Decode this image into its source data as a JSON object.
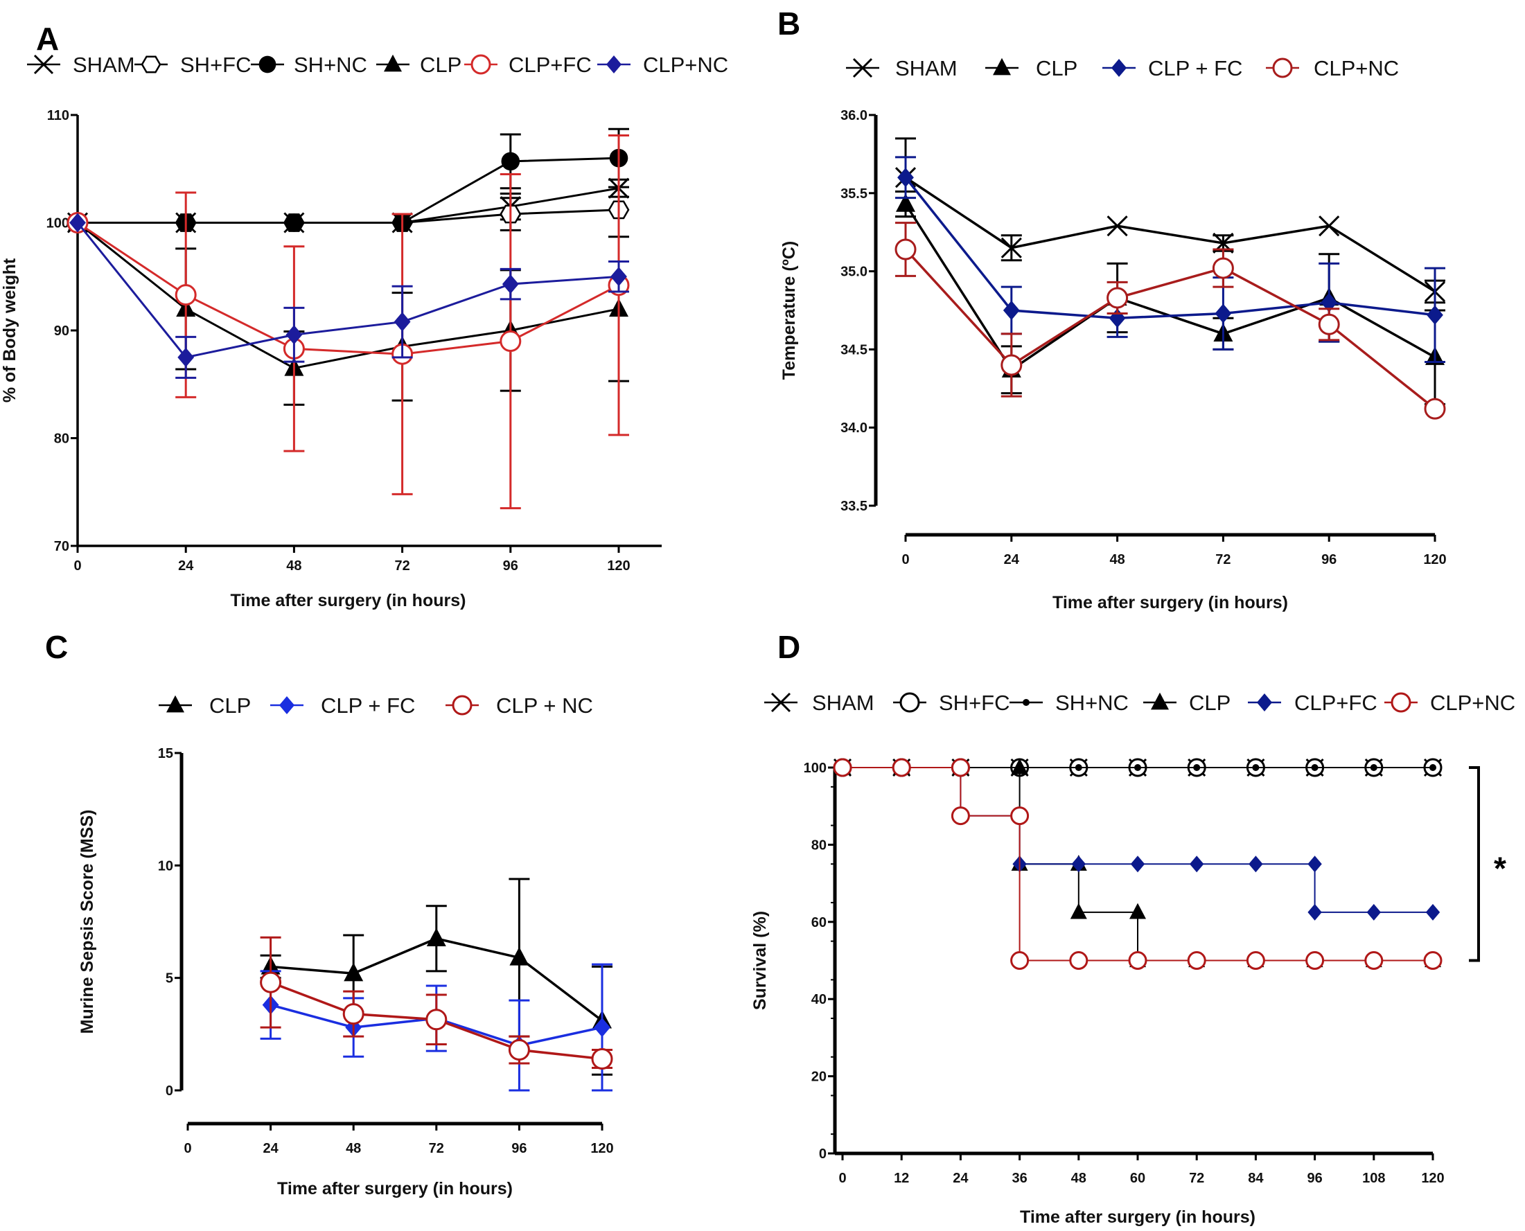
{
  "chart_data": [
    {
      "panel": "A",
      "type": "line",
      "xlabel": "Time after surgery (in hours)",
      "ylabel": "% of Body weight",
      "xlim": [
        0,
        120
      ],
      "ylim": [
        70,
        110
      ],
      "xticks": [
        "0",
        "24",
        "48",
        "72",
        "96",
        "120"
      ],
      "yticks": [
        "70",
        "80",
        "90",
        "100",
        "110"
      ],
      "x": [
        0,
        24,
        48,
        72,
        96,
        120
      ],
      "legend_placement": "top",
      "series": [
        {
          "name": "SHAM",
          "marker": "x",
          "color": "#000000",
          "values": [
            100,
            100,
            100,
            100,
            101.5,
            103.2
          ],
          "err": [
            0,
            0,
            0,
            0,
            1.2,
            0.8
          ]
        },
        {
          "name": "SH+FC",
          "marker": "open-hexagon",
          "color": "#000000",
          "values": [
            100,
            100,
            100,
            100,
            100.8,
            101.2
          ],
          "err": [
            0,
            0,
            0,
            0,
            1.5,
            0
          ]
        },
        {
          "name": "SH+NC",
          "marker": "filled-circle",
          "color": "#000000",
          "values": [
            100,
            100,
            100,
            100,
            105.7,
            106
          ],
          "err": [
            0,
            0,
            0,
            0,
            2.5,
            2.7
          ]
        },
        {
          "name": "CLP",
          "marker": "filled-triangle",
          "color": "#000000",
          "values": [
            100,
            92,
            86.5,
            88.5,
            90,
            92
          ],
          "err": [
            0,
            5.6,
            3.4,
            5,
            5.6,
            6.7
          ]
        },
        {
          "name": "CLP+FC",
          "marker": "open-circle",
          "color": "#d42a2a",
          "values": [
            100,
            93.3,
            88.3,
            87.8,
            89,
            94.2
          ],
          "err": [
            0,
            9.5,
            9.5,
            13,
            15.5,
            13.9
          ]
        },
        {
          "name": "CLP+NC",
          "marker": "filled-diamond",
          "color": "#1c1c9c",
          "values": [
            100,
            87.5,
            89.6,
            90.8,
            94.3,
            95
          ],
          "err": [
            0,
            1.9,
            2.5,
            3.3,
            1.4,
            1.4
          ]
        }
      ]
    },
    {
      "panel": "B",
      "type": "line",
      "xlabel": "Time after surgery (in hours)",
      "ylabel": "Temperature (ºC)",
      "xlim": [
        0,
        120
      ],
      "ylim": [
        33.5,
        36.0
      ],
      "xticks": [
        "0",
        "24",
        "48",
        "72",
        "96",
        "120"
      ],
      "yticks": [
        "33.5",
        "34.0",
        "34.5",
        "35.0",
        "35.5",
        "36.0"
      ],
      "x": [
        0,
        24,
        48,
        72,
        96,
        120
      ],
      "legend_placement": "top",
      "series": [
        {
          "name": "SHAM",
          "marker": "x",
          "color": "#000000",
          "values": [
            35.6,
            35.15,
            35.29,
            35.18,
            35.29,
            34.87
          ],
          "err": [
            0.25,
            0.08,
            0,
            0.05,
            0,
            0.07
          ]
        },
        {
          "name": "CLP",
          "marker": "filled-triangle",
          "color": "#000000",
          "values": [
            35.43,
            34.37,
            34.83,
            34.6,
            34.83,
            34.45
          ],
          "err": [
            0.08,
            0.15,
            0.22,
            0.1,
            0.28,
            0.3
          ]
        },
        {
          "name": "CLP + FC",
          "marker": "filled-diamond",
          "color": "#0c1a8c",
          "values": [
            35.6,
            34.75,
            34.7,
            34.73,
            34.8,
            34.72
          ],
          "err": [
            0.13,
            0.15,
            0.12,
            0.23,
            0.25,
            0.3
          ]
        },
        {
          "name": "CLP+NC",
          "marker": "open-circle",
          "color": "#a81c1c",
          "values": [
            35.14,
            34.4,
            34.83,
            35.02,
            34.66,
            34.12
          ],
          "err": [
            0.17,
            0.2,
            0.1,
            0.12,
            0.1,
            0
          ]
        }
      ]
    },
    {
      "panel": "C",
      "type": "line",
      "xlabel": "Time after surgery (in hours)",
      "ylabel": "Murine Sepsis Score (MSS)",
      "xlim": [
        0,
        120
      ],
      "ylim": [
        0,
        15
      ],
      "xticks": [
        "0",
        "24",
        "48",
        "72",
        "96",
        "120"
      ],
      "yticks": [
        "0",
        "5",
        "10",
        "15"
      ],
      "x": [
        24,
        48,
        72,
        96,
        120
      ],
      "legend_placement": "top",
      "series": [
        {
          "name": "CLP",
          "marker": "filled-triangle",
          "color": "#000000",
          "values": [
            5.5,
            5.2,
            6.75,
            5.9,
            3.1
          ],
          "err": [
            0.5,
            1.7,
            1.45,
            3.5,
            2.4
          ]
        },
        {
          "name": "CLP + FC",
          "marker": "filled-diamond",
          "color": "#1a2ee0",
          "values": [
            3.8,
            2.8,
            3.2,
            2.0,
            2.8
          ],
          "err": [
            1.5,
            1.3,
            1.45,
            2.0,
            2.8
          ]
        },
        {
          "name": "CLP + NC",
          "marker": "open-circle",
          "color": "#b01818",
          "values": [
            4.8,
            3.4,
            3.15,
            1.8,
            1.4
          ],
          "err": [
            2.0,
            1.0,
            1.1,
            0.6,
            0.4
          ]
        }
      ]
    },
    {
      "panel": "D",
      "type": "line",
      "subtype": "survival-step",
      "xlabel": "Time after surgery (in hours)",
      "ylabel": "Survival (%)",
      "xlim": [
        0,
        120
      ],
      "ylim": [
        0,
        100
      ],
      "xticks": [
        "0",
        "12",
        "24",
        "36",
        "48",
        "60",
        "72",
        "84",
        "96",
        "108",
        "120"
      ],
      "yticks": [
        "0",
        "20",
        "40",
        "60",
        "80",
        "100"
      ],
      "legend_placement": "top",
      "annotation": "*",
      "series": [
        {
          "name": "SHAM",
          "marker": "x",
          "color": "#000000",
          "points": [
            [
              0,
              100
            ],
            [
              12,
              100
            ],
            [
              24,
              100
            ],
            [
              36,
              100
            ],
            [
              48,
              100
            ],
            [
              60,
              100
            ],
            [
              72,
              100
            ],
            [
              84,
              100
            ],
            [
              96,
              100
            ],
            [
              108,
              100
            ],
            [
              120,
              100
            ]
          ]
        },
        {
          "name": "SH+FC",
          "marker": "open-circle",
          "color": "#000000",
          "points": [
            [
              0,
              100
            ],
            [
              12,
              100
            ],
            [
              24,
              100
            ],
            [
              36,
              100
            ],
            [
              48,
              100
            ],
            [
              60,
              100
            ],
            [
              72,
              100
            ],
            [
              84,
              100
            ],
            [
              96,
              100
            ],
            [
              108,
              100
            ],
            [
              120,
              100
            ]
          ]
        },
        {
          "name": "SH+NC",
          "marker": "small-dot",
          "color": "#000000",
          "points": [
            [
              0,
              100
            ],
            [
              12,
              100
            ],
            [
              24,
              100
            ],
            [
              36,
              100
            ],
            [
              48,
              100
            ],
            [
              60,
              100
            ],
            [
              72,
              100
            ],
            [
              84,
              100
            ],
            [
              96,
              100
            ],
            [
              108,
              100
            ],
            [
              120,
              100
            ]
          ]
        },
        {
          "name": "CLP",
          "marker": "filled-triangle",
          "color": "#000000",
          "points": [
            [
              0,
              100
            ],
            [
              12,
              100
            ],
            [
              24,
              100
            ],
            [
              36,
              100
            ],
            [
              36,
              75
            ],
            [
              48,
              75
            ],
            [
              48,
              62.5
            ],
            [
              60,
              62.5
            ],
            [
              60,
              50
            ],
            [
              72,
              50
            ],
            [
              84,
              50
            ],
            [
              96,
              50
            ],
            [
              108,
              50
            ],
            [
              120,
              50
            ]
          ]
        },
        {
          "name": "CLP+FC",
          "marker": "filled-diamond",
          "color": "#0c1a8c",
          "points": [
            [
              0,
              100
            ],
            [
              12,
              100
            ],
            [
              24,
              100
            ],
            [
              24,
              87.5
            ],
            [
              36,
              87.5
            ],
            [
              36,
              75
            ],
            [
              48,
              75
            ],
            [
              60,
              75
            ],
            [
              72,
              75
            ],
            [
              84,
              75
            ],
            [
              96,
              75
            ],
            [
              96,
              62.5
            ],
            [
              108,
              62.5
            ],
            [
              120,
              62.5
            ]
          ]
        },
        {
          "name": "CLP+NC",
          "marker": "open-circle",
          "color": "#b01818",
          "points": [
            [
              0,
              100
            ],
            [
              12,
              100
            ],
            [
              24,
              100
            ],
            [
              24,
              87.5
            ],
            [
              36,
              87.5
            ],
            [
              36,
              50
            ],
            [
              48,
              50
            ],
            [
              60,
              50
            ],
            [
              72,
              50
            ],
            [
              84,
              50
            ],
            [
              96,
              50
            ],
            [
              108,
              50
            ],
            [
              120,
              50
            ]
          ]
        }
      ]
    }
  ]
}
